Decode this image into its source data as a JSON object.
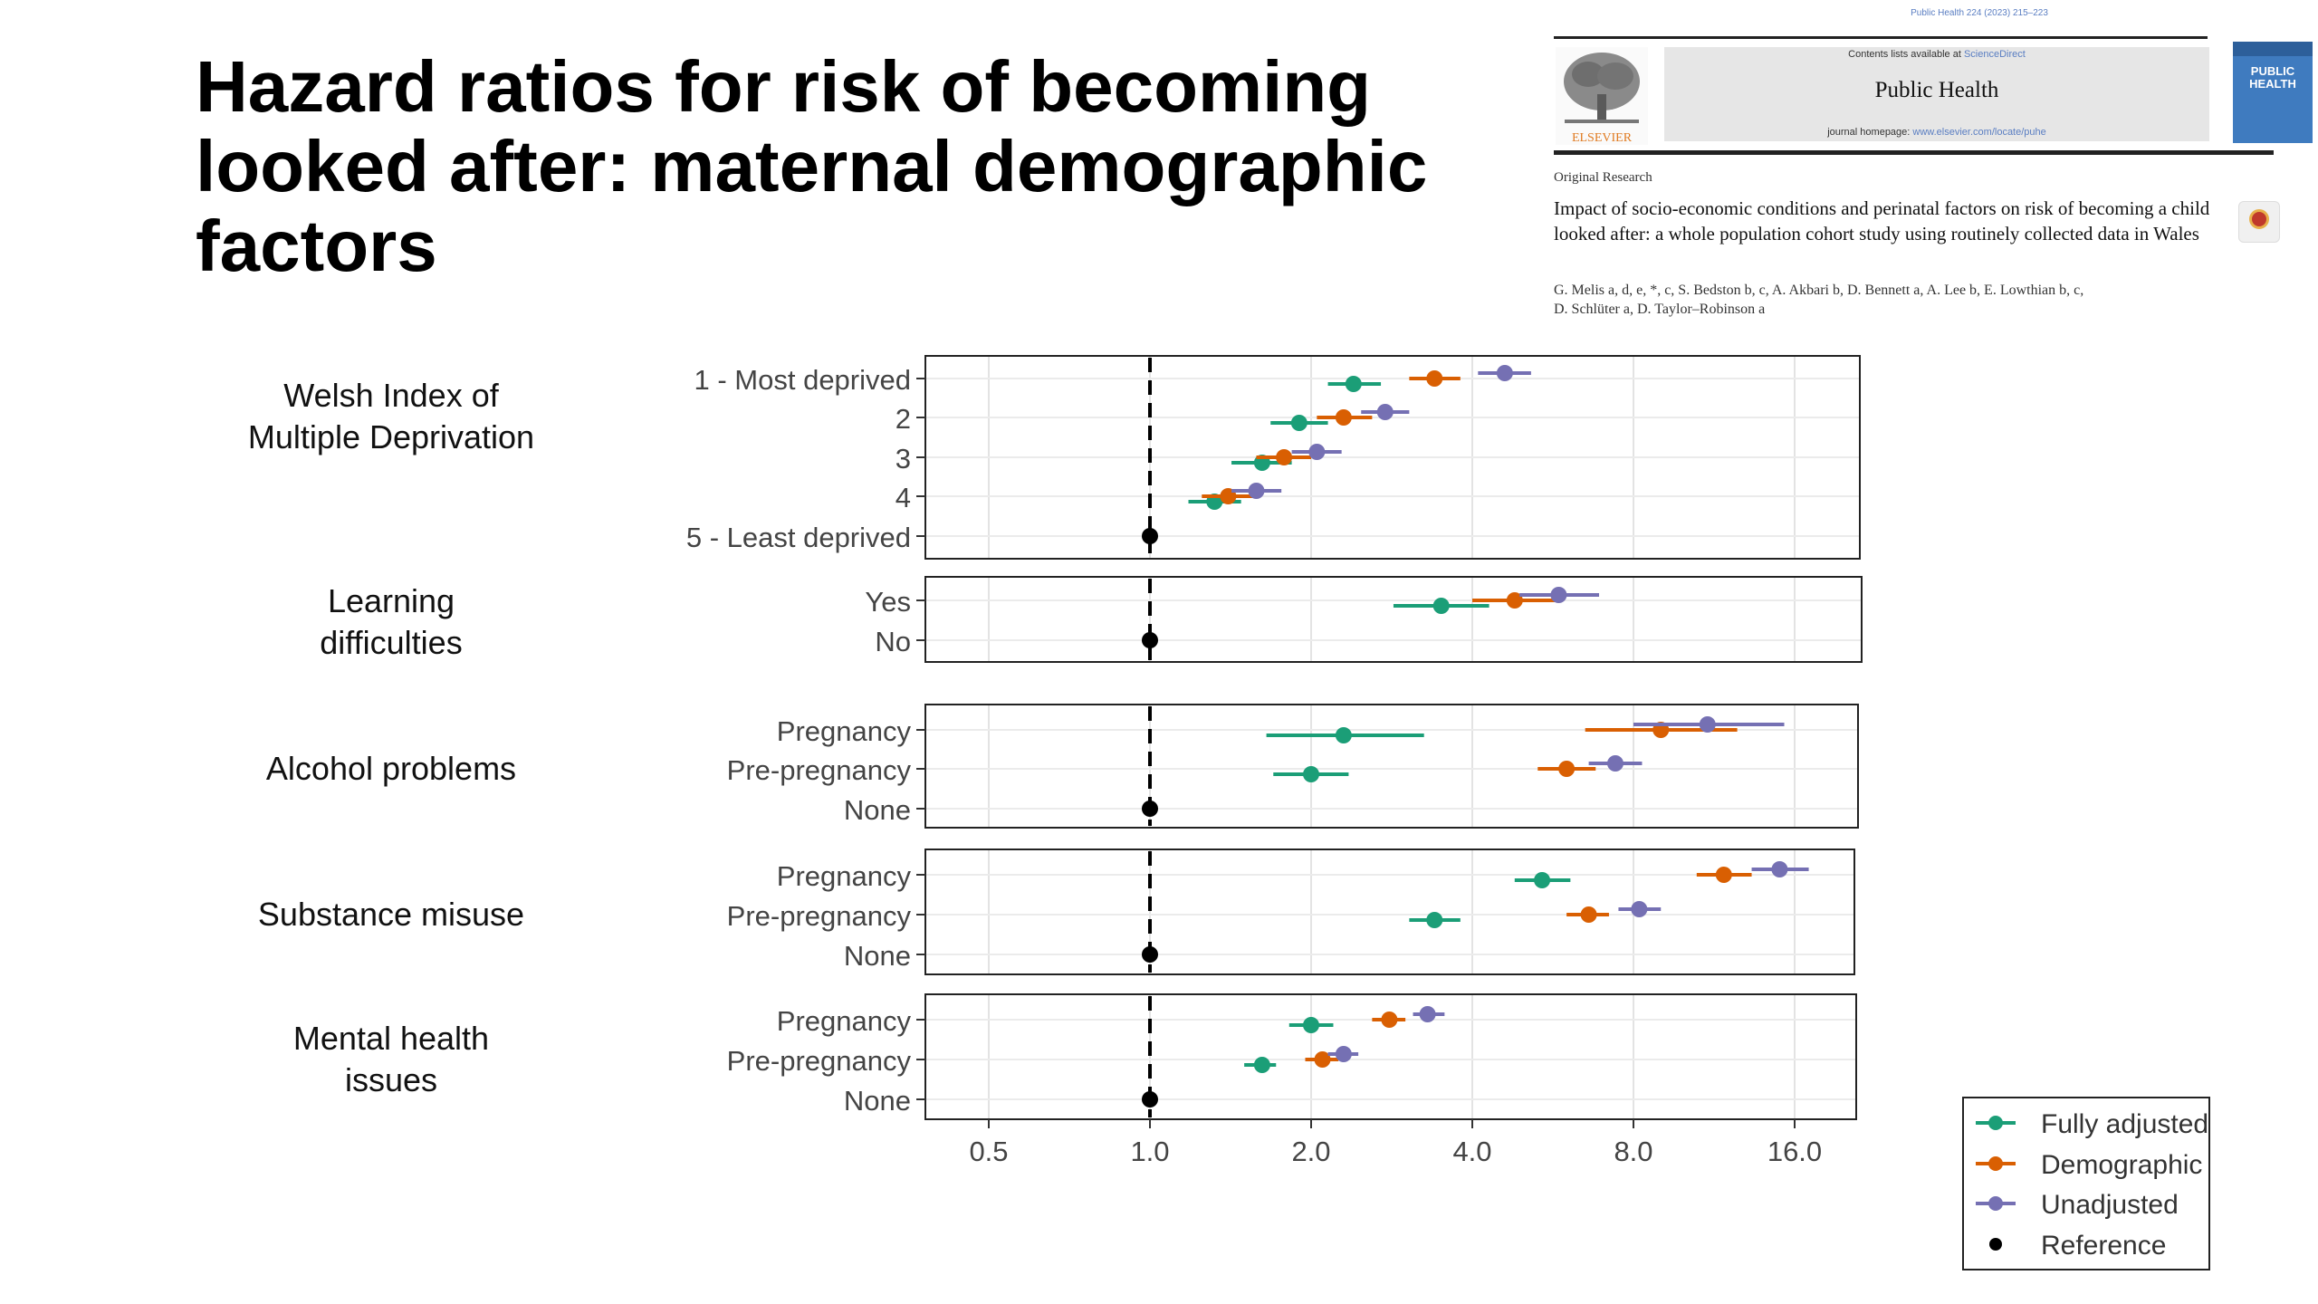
{
  "slide": {
    "title": "Hazard ratios for risk of becoming looked after: maternal demographic factors"
  },
  "paper": {
    "citation": "Public Health 224 (2023) 215–223",
    "contents_prefix": "Contents lists available at ",
    "contents_link": "ScienceDirect",
    "journal": "Public Health",
    "homepage_prefix": "journal homepage: ",
    "homepage_link": "www.elsevier.com/locate/puhe",
    "publisher": "ELSEVIER",
    "cover_label": "PUBLIC HEALTH",
    "article_type": "Original Research",
    "article_title": "Impact of socio-economic conditions and perinatal factors on risk of becoming a child looked after: a whole population cohort study using routinely collected data in Wales",
    "authors_line1": "G. Melis a, d, e, *, c, S. Bedston b, c, A. Akbari b, D. Bennett a, A. Lee b, E. Lowthian b, c,",
    "authors_line2": "D. Schlüter a, D. Taylor–Robinson a"
  },
  "colors": {
    "fully_adjusted": "#1b9e77",
    "demographic": "#d95f02",
    "unadjusted": "#7570b3",
    "reference": "#000000"
  },
  "chart_data": {
    "type": "forest plot (scatter with horizontal error bars)",
    "x_scale": "log2",
    "xlim": [
      0.38,
      22
    ],
    "x_ticks": [
      0.5,
      1.0,
      2.0,
      4.0,
      8.0,
      16.0
    ],
    "x_tick_labels": [
      "0.5",
      "1.0",
      "2.0",
      "4.0",
      "8.0",
      "16.0"
    ],
    "reference_line": 1.0,
    "grid": true,
    "legend_position": "bottom-right",
    "legend": [
      {
        "key": "fully_adjusted",
        "label": "Fully adjusted"
      },
      {
        "key": "demographic",
        "label": "Demographic"
      },
      {
        "key": "unadjusted",
        "label": "Unadjusted"
      },
      {
        "key": "reference",
        "label": "Reference"
      }
    ],
    "panels": [
      {
        "label": "Welsh Index of Multiple Deprivation",
        "label_lines": [
          "Welsh Index of",
          "Multiple Deprivation"
        ],
        "rows": [
          {
            "label": "1 - Most deprived",
            "fully_adjusted": [
              2.4,
              2.15,
              2.7
            ],
            "demographic": [
              3.4,
              3.05,
              3.8
            ],
            "unadjusted": [
              4.6,
              4.1,
              5.15
            ]
          },
          {
            "label": "2",
            "fully_adjusted": [
              1.9,
              1.68,
              2.15
            ],
            "demographic": [
              2.3,
              2.05,
              2.6
            ],
            "unadjusted": [
              2.75,
              2.48,
              3.05
            ]
          },
          {
            "label": "3",
            "fully_adjusted": [
              1.62,
              1.42,
              1.84
            ],
            "demographic": [
              1.78,
              1.58,
              2.0
            ],
            "unadjusted": [
              2.05,
              1.84,
              2.28
            ]
          },
          {
            "label": "4",
            "fully_adjusted": [
              1.32,
              1.18,
              1.48
            ],
            "demographic": [
              1.4,
              1.25,
              1.56
            ],
            "unadjusted": [
              1.58,
              1.42,
              1.76
            ]
          },
          {
            "label": "5 - Least deprived",
            "reference": 1.0
          }
        ]
      },
      {
        "label": "Learning difficulties",
        "label_lines": [
          "Learning",
          "difficulties"
        ],
        "rows": [
          {
            "label": "Yes",
            "fully_adjusted": [
              3.5,
              2.85,
              4.3
            ],
            "demographic": [
              4.8,
              4.0,
              5.8
            ],
            "unadjusted": [
              5.8,
              4.9,
              6.9
            ]
          },
          {
            "label": "No",
            "reference": 1.0
          }
        ]
      },
      {
        "label": "Alcohol problems",
        "label_lines": [
          "Alcohol problems"
        ],
        "rows": [
          {
            "label": "Pregnancy",
            "fully_adjusted": [
              2.3,
              1.65,
              3.25
            ],
            "demographic": [
              9.0,
              6.5,
              12.5
            ],
            "unadjusted": [
              11.0,
              8.0,
              15.3
            ]
          },
          {
            "label": "Pre-pregnancy",
            "fully_adjusted": [
              2.0,
              1.7,
              2.35
            ],
            "demographic": [
              6.0,
              5.3,
              6.8
            ],
            "unadjusted": [
              7.4,
              6.6,
              8.3
            ]
          },
          {
            "label": "None",
            "reference": 1.0
          }
        ]
      },
      {
        "label": "Substance misuse",
        "label_lines": [
          "Substance misuse"
        ],
        "rows": [
          {
            "label": "Pregnancy",
            "fully_adjusted": [
              5.4,
              4.8,
              6.1
            ],
            "demographic": [
              11.8,
              10.5,
              13.3
            ],
            "unadjusted": [
              15.0,
              13.3,
              17.0
            ]
          },
          {
            "label": "Pre-pregnancy",
            "fully_adjusted": [
              3.4,
              3.05,
              3.8
            ],
            "demographic": [
              6.6,
              6.0,
              7.2
            ],
            "unadjusted": [
              8.2,
              7.5,
              9.0
            ]
          },
          {
            "label": "None",
            "reference": 1.0
          }
        ]
      },
      {
        "label": "Mental health issues",
        "label_lines": [
          "Mental health",
          "issues"
        ],
        "rows": [
          {
            "label": "Pregnancy",
            "fully_adjusted": [
              2.0,
              1.82,
              2.2
            ],
            "demographic": [
              2.8,
              2.6,
              3.0
            ],
            "unadjusted": [
              3.3,
              3.1,
              3.55
            ]
          },
          {
            "label": "Pre-pregnancy",
            "fully_adjusted": [
              1.62,
              1.5,
              1.72
            ],
            "demographic": [
              2.1,
              1.95,
              2.25
            ],
            "unadjusted": [
              2.3,
              2.15,
              2.45
            ]
          },
          {
            "label": "None",
            "reference": 1.0
          }
        ]
      }
    ]
  }
}
